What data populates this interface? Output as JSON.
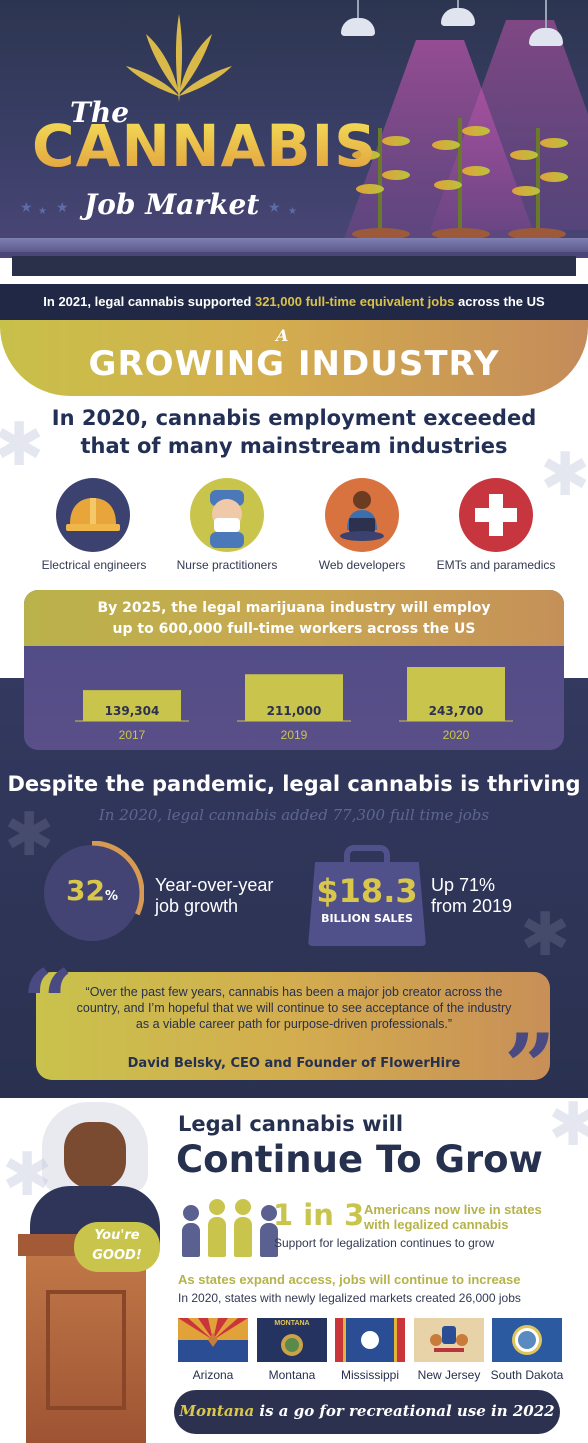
{
  "header": {
    "the": "The",
    "cannabis": "CANNABIS",
    "job_market": "Job Market"
  },
  "banner": {
    "before": "In 2021, legal cannabis supported ",
    "highlight": "321,000 full-time equivalent jobs",
    "after": " across the US"
  },
  "growing": {
    "a": "A",
    "title": "GROWING INDUSTRY"
  },
  "exceeded": {
    "line1": "In 2020, cannabis employment exceeded",
    "line2": "that of many mainstream industries"
  },
  "industries": [
    {
      "label": "Electrical engineers",
      "icon": "hard-hat-icon",
      "color": "#3b4270"
    },
    {
      "label": "Nurse practitioners",
      "icon": "nurse-icon",
      "color": "#c9c54c"
    },
    {
      "label": "Web developers",
      "icon": "laptop-person-icon",
      "color": "#d8733f"
    },
    {
      "label": "EMTs and paramedics",
      "icon": "medical-cross-icon",
      "color": "#c7353f"
    }
  ],
  "projection": {
    "line1": "By 2025, the legal marijuana industry will employ",
    "line2": "up to 600,000 full-time workers across the US"
  },
  "chart_data": {
    "type": "bar",
    "categories": [
      "2017",
      "2019",
      "2020"
    ],
    "values": [
      139304,
      211000,
      243700
    ],
    "value_labels": [
      "139,304",
      "211,000",
      "243,700"
    ],
    "color": "#c9c54c"
  },
  "pandemic": {
    "title": "Despite the pandemic, legal cannabis is thriving",
    "added": "In 2020, legal cannabis added 77,300 full time jobs"
  },
  "stats": {
    "growth_value": "32",
    "growth_unit": "%",
    "growth_fraction": 0.32,
    "growth_line1": "Year-over-year",
    "growth_line2": "job growth",
    "sales_value": "$18.3",
    "sales_label": "BILLION SALES",
    "sales_up1": "Up 71%",
    "sales_up2": "from 2019"
  },
  "quote": {
    "text": "“Over the past few years, cannabis has been a major job creator across the country, and I’m hopeful that we will continue to see acceptance of the industry as a viable career path for purpose-driven professionals.”",
    "author": "David Belsky, CEO and Founder of FlowerHire"
  },
  "bubble": {
    "line1": "You're",
    "line2": "GOOD!"
  },
  "continue": {
    "line1": "Legal cannabis will",
    "line2": "Continue To Grow"
  },
  "ratio": {
    "value": "1 in 3",
    "americans1": "Americans now live in states",
    "americans2": "with legalized cannabis",
    "support": "Support for legalization continues to grow"
  },
  "states": {
    "head": "As states expand access, jobs will continue to increase",
    "sub": "In 2020, states with newly legalized markets created 26,000 jobs",
    "list": [
      {
        "name": "Arizona"
      },
      {
        "name": "Montana",
        "flag_text": "MONTANA"
      },
      {
        "name": "Mississippi"
      },
      {
        "name": "New Jersey"
      },
      {
        "name": "South Dakota"
      }
    ]
  },
  "montana": {
    "state": "Montana",
    "rest": " is a go for recreational use in 2022"
  }
}
